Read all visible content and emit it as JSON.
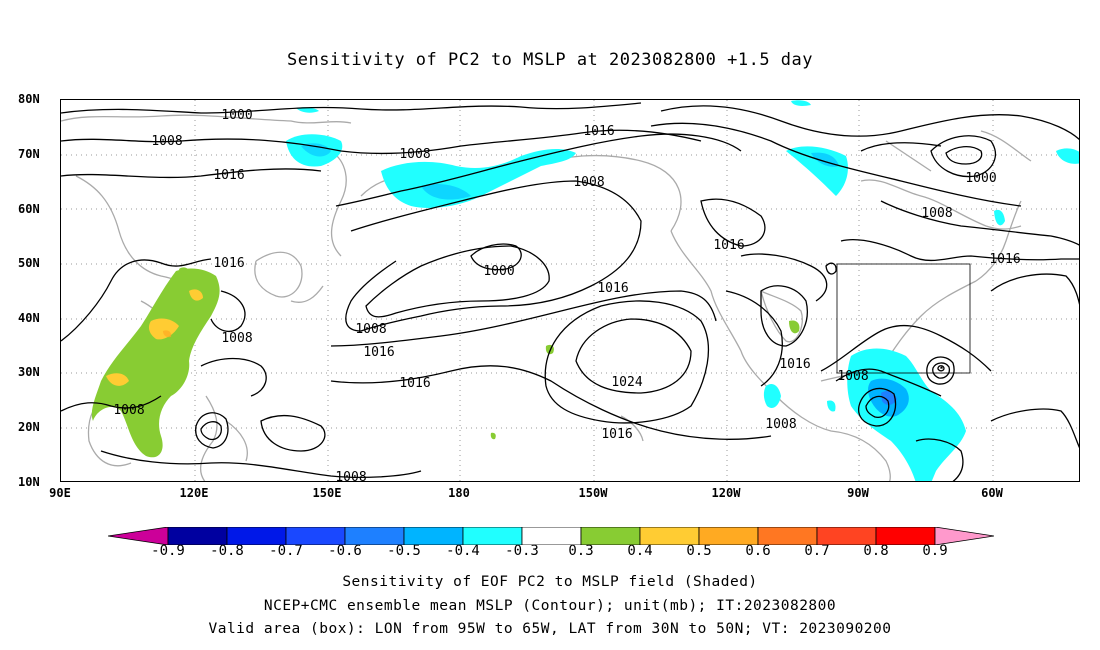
{
  "title": "Sensitivity of PC2 to MSLP at 2023082800 +1.5 day",
  "map": {
    "lat_labels": [
      "80N",
      "70N",
      "60N",
      "50N",
      "40N",
      "30N",
      "20N",
      "10N"
    ],
    "lon_labels": [
      "90E",
      "120E",
      "150E",
      "180",
      "150W",
      "120W",
      "90W",
      "60W"
    ],
    "contour_labels": {
      "c1": "1000",
      "c2": "1008",
      "c3": "1016",
      "c4": "1008",
      "c5": "1016",
      "c6": "1008",
      "c7": "1000",
      "c8": "1008",
      "c9": "1016",
      "c10": "1000",
      "c11": "1016",
      "c12": "1016",
      "c13": "1016",
      "c14": "1008",
      "c15": "1016",
      "c16": "1008",
      "c17": "1016",
      "c18": "1008",
      "c19": "1008",
      "c20": "1024",
      "c21": "1016",
      "c22": "1008",
      "c23": "1016",
      "c24": "1008",
      "c25": "1008"
    },
    "valid_box": {
      "lon_from": "95W",
      "lon_to": "65W",
      "lat_from": "30N",
      "lat_to": "50N"
    }
  },
  "colorbar": {
    "labels": [
      "-0.9",
      "-0.8",
      "-0.7",
      "-0.6",
      "-0.5",
      "-0.4",
      "-0.3",
      "0.3",
      "0.4",
      "0.5",
      "0.6",
      "0.7",
      "0.8",
      "0.9"
    ],
    "colors": [
      "#0000a0",
      "#0018e8",
      "#1a48ff",
      "#1e80ff",
      "#00b4ff",
      "#20ffff",
      "#ffffff",
      "#88cc33",
      "#ffcc33",
      "#ffaa22",
      "#ff7722",
      "#ff4422",
      "#ff0000"
    ],
    "low_end_color": "#cc0099",
    "high_end_color": "#ff99cc"
  },
  "footer": {
    "line1": "Sensitivity of EOF PC2 to MSLP field (Shaded)",
    "line2": "NCEP+CMC ensemble mean MSLP (Contour); unit(mb); IT:2023082800",
    "line3": "Valid area (box): LON from 95W to 65W, LAT from 30N to 50N; VT: 2023090200"
  }
}
